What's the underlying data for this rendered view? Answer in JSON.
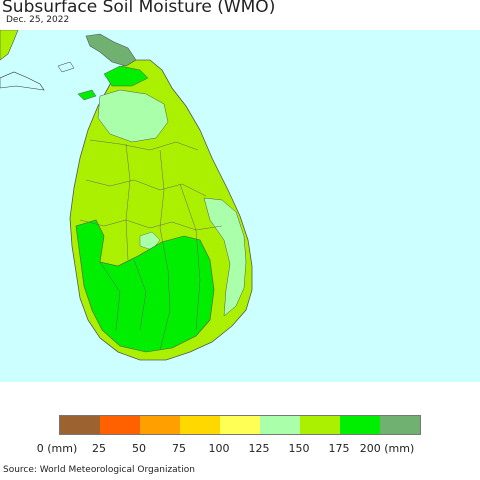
{
  "title": "Subsurface Soil Moisture (WMO)",
  "date": "Dec. 25, 2022",
  "source": "Source: World Meteorological Organization",
  "legend": {
    "labels": [
      "0 (mm)",
      "25",
      "50",
      "75",
      "100",
      "125",
      "150",
      "175",
      "200 (mm)"
    ],
    "colors": [
      "#9c6330",
      "#ff6000",
      "#ffa000",
      "#ffd800",
      "#ffff55",
      "#aaffaa",
      "#aaf000",
      "#00ef00",
      "#70b070"
    ]
  },
  "colors": {
    "ocean": "#ccffff",
    "land_low": "#aaf000",
    "land_mid": "#aaffaa",
    "land_high": "#00ef00",
    "land_max": "#70b070"
  }
}
